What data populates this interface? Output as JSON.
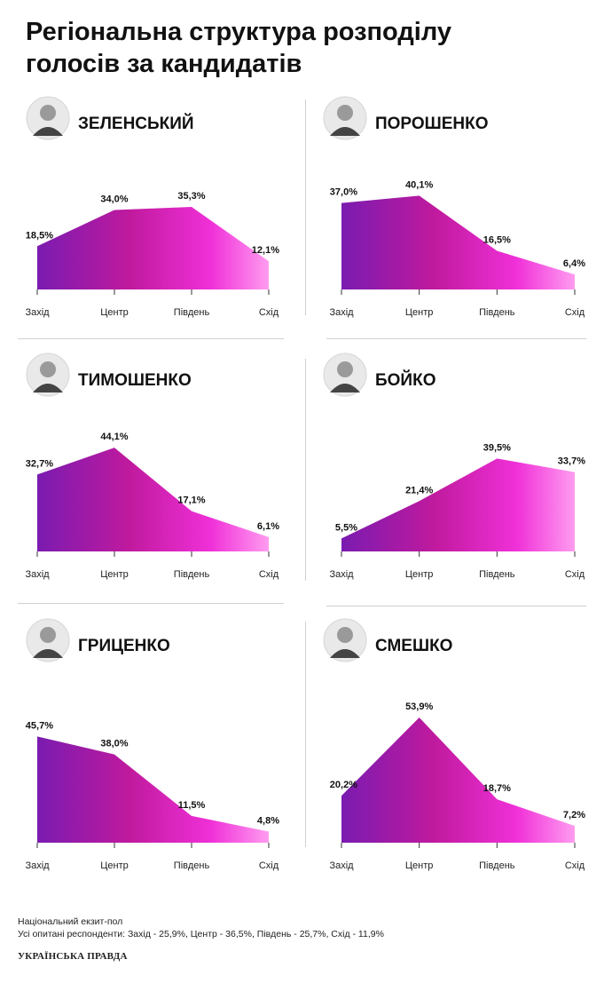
{
  "title_line1": "Регіональна структура розподілу",
  "title_line2": "голосів за кандидатів",
  "gradient": {
    "start": "#7a1bb0",
    "mid": "#c01a9e",
    "mid2": "#f030d8",
    "end": "#ff9cf0"
  },
  "chart_data": [
    {
      "type": "area",
      "title": "ЗЕЛЕНСЬКИЙ",
      "categories": [
        "Захід",
        "Центр",
        "Південь",
        "Схід"
      ],
      "values": [
        18.5,
        34.0,
        35.3,
        12.1
      ],
      "labels": [
        "18,5%",
        "34,0%",
        "35,3%",
        "12,1%"
      ],
      "ylim": [
        0,
        60
      ]
    },
    {
      "type": "area",
      "title": "ПОРОШЕНКО",
      "categories": [
        "Захід",
        "Центр",
        "Південь",
        "Схід"
      ],
      "values": [
        37.0,
        40.1,
        16.5,
        6.4
      ],
      "labels": [
        "37,0%",
        "40,1%",
        "16,5%",
        "6,4%"
      ],
      "ylim": [
        0,
        60
      ]
    },
    {
      "type": "area",
      "title": "ТИМОШЕНКО",
      "categories": [
        "Захід",
        "Центр",
        "Південь",
        "Схід"
      ],
      "values": [
        32.7,
        44.1,
        17.1,
        6.1
      ],
      "labels": [
        "32,7%",
        "44,1%",
        "17,1%",
        "6,1%"
      ],
      "ylim": [
        0,
        60
      ]
    },
    {
      "type": "area",
      "title": "БОЙКО",
      "categories": [
        "Захід",
        "Центр",
        "Південь",
        "Схід"
      ],
      "values": [
        5.5,
        21.4,
        39.5,
        33.7
      ],
      "labels": [
        "5,5%",
        "21,4%",
        "39,5%",
        "33,7%"
      ],
      "ylim": [
        0,
        60
      ]
    },
    {
      "type": "area",
      "title": "ГРИЦЕНКО",
      "categories": [
        "Захід",
        "Центр",
        "Південь",
        "Схід"
      ],
      "values": [
        45.7,
        38.0,
        11.5,
        4.8
      ],
      "labels": [
        "45,7%",
        "38,0%",
        "11,5%",
        "4,8%"
      ],
      "ylim": [
        0,
        60
      ]
    },
    {
      "type": "area",
      "title": "СМЕШКО",
      "categories": [
        "Захід",
        "Центр",
        "Південь",
        "Схід"
      ],
      "values": [
        20.2,
        53.9,
        18.7,
        7.2
      ],
      "labels": [
        "20,2%",
        "53,9%",
        "18,7%",
        "7,2%"
      ],
      "ylim": [
        0,
        60
      ]
    }
  ],
  "footer_line1": "Національний екзит-пол",
  "footer_line2": "Усі опитані респонденти: Захід - 25,9%, Центр - 36,5%, Південь - 25,7%, Схід - 11,9%",
  "logo": "УКРАЇНСЬКА ПРАВДА"
}
